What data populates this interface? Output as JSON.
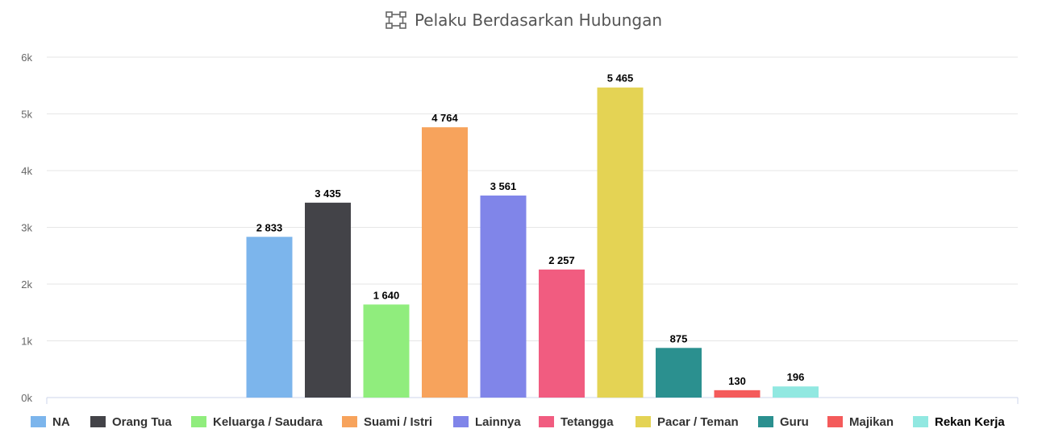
{
  "header": {
    "title": "Pelaku Berdasarkan Hubungan",
    "icon": "flow-diagram-icon"
  },
  "chart_data": {
    "type": "bar",
    "title": "Pelaku Berdasarkan Hubungan",
    "xlabel": "",
    "ylabel": "",
    "ylim": [
      0,
      6000
    ],
    "yticks": [
      "0k",
      "1k",
      "2k",
      "3k",
      "4k",
      "5k",
      "6k"
    ],
    "grid": true,
    "legend_position": "bottom",
    "series": [
      {
        "name": "NA",
        "value": 2833,
        "label": "2 833",
        "color": "#7cb5ec"
      },
      {
        "name": "Orang Tua",
        "value": 3435,
        "label": "3 435",
        "color": "#434348"
      },
      {
        "name": "Keluarga / Saudara",
        "value": 1640,
        "label": "1 640",
        "color": "#90ed7d"
      },
      {
        "name": "Suami / Istri",
        "value": 4764,
        "label": "4 764",
        "color": "#f7a35c"
      },
      {
        "name": "Lainnya",
        "value": 3561,
        "label": "3 561",
        "color": "#8085e9"
      },
      {
        "name": "Tetangga",
        "value": 2257,
        "label": "2 257",
        "color": "#f15c80"
      },
      {
        "name": "Pacar / Teman",
        "value": 5465,
        "label": "5 465",
        "color": "#e4d354"
      },
      {
        "name": "Guru",
        "value": 875,
        "label": "875",
        "color": "#2b908f"
      },
      {
        "name": "Majikan",
        "value": 130,
        "label": "130",
        "color": "#f45b5b"
      },
      {
        "name": "Rekan Kerja",
        "value": 196,
        "label": "196",
        "color": "#91e8e1"
      }
    ]
  }
}
